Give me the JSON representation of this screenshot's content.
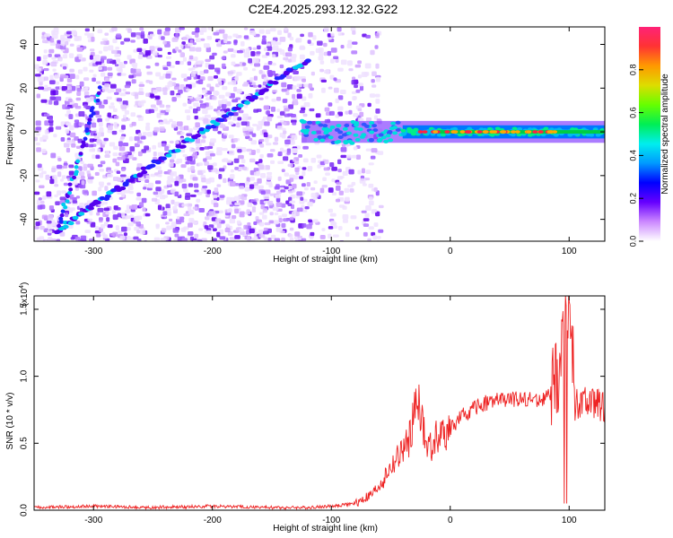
{
  "title": "C2E4.2025.293.12.32.G22",
  "colors": {
    "spectro_low": "#e6ccff",
    "spectro_mid": "#5500ee",
    "snr_line": "#ee2222",
    "axis": "#000000"
  },
  "chart_data": [
    {
      "type": "heatmap",
      "title": "C2E4.2025.293.12.32.G22",
      "xlabel": "Height of straight line (km)",
      "ylabel": "Frequency (Hz)",
      "xlim": [
        -350,
        130
      ],
      "ylim": [
        -50,
        48
      ],
      "x_ticks": [
        -300,
        -200,
        -100,
        0,
        100
      ],
      "y_ticks": [
        -40,
        -20,
        0,
        20,
        40
      ],
      "x_tick_labels": [
        "-300",
        "-200",
        "-100",
        "0",
        "100"
      ],
      "y_tick_labels": [
        "-40",
        "-20",
        "0",
        "20",
        "40"
      ],
      "colorbar": {
        "label": "Normalized spectral amplitude",
        "range": [
          0.0,
          1.0
        ],
        "ticks": [
          0.0,
          0.2,
          0.4,
          0.6,
          0.8
        ],
        "tick_labels": [
          "0.0",
          "0.2",
          "0.4",
          "0.6",
          "0.8"
        ],
        "stops": [
          "#ffffff",
          "#cc88ff",
          "#6600ff",
          "#0000ff",
          "#0099ff",
          "#00eeee",
          "#00ee55",
          "#66ff00",
          "#dddd00",
          "#ff9900",
          "#ff3333",
          "#ff2277"
        ]
      },
      "features": [
        {
          "name": "main-ridge",
          "x": [
            -330,
            -120
          ],
          "y": [
            -45,
            33
          ]
        },
        {
          "name": "steep-ridge",
          "x": [
            -330,
            -295
          ],
          "y": [
            -45,
            20
          ]
        },
        {
          "name": "carrier-line",
          "x": [
            -125,
            130
          ],
          "y": [
            0,
            0
          ]
        }
      ]
    },
    {
      "type": "line",
      "xlabel": "Height of straight line (km)",
      "ylabel": "SNR (10 * v/v)",
      "y_scale_label": "(x10",
      "y_scale_exponent": "4",
      "y_scale_suffix": ")",
      "xlim": [
        -350,
        130
      ],
      "ylim": [
        0,
        1.6
      ],
      "x_ticks": [
        -300,
        -200,
        -100,
        0,
        100
      ],
      "y_ticks": [
        0.0,
        0.5,
        1.0,
        1.5
      ],
      "x_tick_labels": [
        "-300",
        "-200",
        "-100",
        "0",
        "100"
      ],
      "y_tick_labels": [
        "0.0",
        "0.5",
        "1.0",
        "1.5"
      ],
      "series": [
        {
          "name": "SNR",
          "x": [
            -350,
            -300,
            -250,
            -200,
            -150,
            -120,
            -100,
            -80,
            -65,
            -55,
            -45,
            -35,
            -27,
            -20,
            -10,
            0,
            10,
            20,
            30,
            40,
            60,
            80,
            90,
            95,
            100,
            105,
            115,
            130
          ],
          "y": [
            0.02,
            0.03,
            0.02,
            0.03,
            0.02,
            0.02,
            0.03,
            0.05,
            0.12,
            0.25,
            0.38,
            0.5,
            0.85,
            0.45,
            0.55,
            0.6,
            0.7,
            0.76,
            0.8,
            0.82,
            0.83,
            0.83,
            0.95,
            1.25,
            1.55,
            0.8,
            0.8,
            0.78
          ]
        }
      ]
    }
  ]
}
